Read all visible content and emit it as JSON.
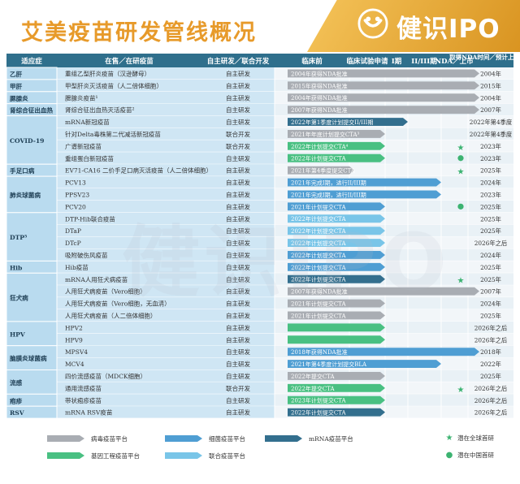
{
  "header": {
    "title": "艾美疫苗研发管线概况",
    "brand": "健识IPO"
  },
  "columns": [
    "适应症",
    "在售／在研疫苗",
    "自主研发／联合开发",
    "临床前",
    "临床试验申请",
    "I期",
    "II/III期",
    "NDA／上市",
    "取得NDA时间／预计上市时间"
  ],
  "chart_data": {
    "type": "table",
    "title": "艾美疫苗研发管线概况",
    "rows": [
      {
        "indication": "乙肝",
        "product": "重组乙型肝炎疫苗（汉逊酵母）",
        "dev": "自主研发",
        "bar": "NDA",
        "text": "2004年获得NDA批准",
        "color": "gray",
        "star": "",
        "time": "2004年"
      },
      {
        "indication": "甲肝",
        "product": "甲型肝炎灭活疫苗（人二倍体细胞）",
        "dev": "自主研发",
        "bar": "NDA",
        "text": "2015年获得NDA批准",
        "color": "gray",
        "star": "",
        "time": "2015年"
      },
      {
        "indication": "腮腺炎",
        "product": "腮腺炎疫苗¹",
        "dev": "自主研发",
        "bar": "NDA",
        "text": "2004年获得NDA批准",
        "color": "gray",
        "star": "",
        "time": "2004年"
      },
      {
        "indication": "肾综合征出血热",
        "product": "肾综合征出血热灭活疫苗²",
        "dev": "自主研发",
        "bar": "NDA",
        "text": "2007年获得NDA批准",
        "color": "gray",
        "star": "",
        "time": "2007年"
      },
      {
        "indication": "COVID-19",
        "product": "mRNA新冠疫苗",
        "dev": "自主研发",
        "bar": "I期",
        "text": "2022年第1季度计划提交II/III期",
        "color": "navy",
        "star": "",
        "time": "2022年第4季度"
      },
      {
        "indication": "",
        "product": "针对Delta毒株第二代减活新冠疫苗",
        "dev": "联合开发",
        "bar": "临床试验申请",
        "text": "2021年年底计划提交CTA³",
        "color": "gray",
        "star": "",
        "time": "2022年第4季度"
      },
      {
        "indication": "",
        "product": "广谱新冠疫苗",
        "dev": "联合开发",
        "bar": "临床试验申请",
        "text": "2022年计划提交CTA⁴",
        "color": "green",
        "star": "global",
        "time": "2023年"
      },
      {
        "indication": "",
        "product": "重组蛋白新冠疫苗",
        "dev": "自主研发",
        "bar": "临床试验申请",
        "text": "2022年计划提交CTA",
        "color": "green",
        "star": "china",
        "time": "2023年"
      },
      {
        "indication": "手足口病",
        "product": "EV71-CA16 二价手足口病灭活疫苗（人二倍体细胞）",
        "dev": "自主研发",
        "bar": "临床前",
        "text": "2021年第4季度提交CTA",
        "color": "gray",
        "star": "global",
        "time": "2025年"
      },
      {
        "indication": "肺炎球菌病",
        "product": "PCV13",
        "dev": "自主研发",
        "bar": "II/III期",
        "text": "2021年完成I期，进行II/III期",
        "color": "blue",
        "star": "",
        "time": "2024年"
      },
      {
        "indication": "",
        "product": "PPSV23",
        "dev": "自主研发",
        "bar": "II/III期",
        "text": "2021年完成I期，进行II/III期",
        "color": "blue",
        "star": "",
        "time": "2023年"
      },
      {
        "indication": "",
        "product": "PCV20",
        "dev": "自主研发",
        "bar": "临床试验申请",
        "text": "2021年计划提交CTA",
        "color": "blue",
        "star": "china",
        "time": "2025年"
      },
      {
        "indication": "DTP⁵",
        "product": "DTP-Hib联合疫苗",
        "dev": "自主研发",
        "bar": "临床试验申请",
        "text": "2022年计划提交CTA",
        "color": "lightblue",
        "star": "",
        "time": "2025年"
      },
      {
        "indication": "",
        "product": "DTaP",
        "dev": "自主研发",
        "bar": "临床试验申请",
        "text": "2022年计划提交CTA",
        "color": "lightblue",
        "star": "",
        "time": "2025年"
      },
      {
        "indication": "",
        "product": "DTcP",
        "dev": "自主研发",
        "bar": "临床试验申请",
        "text": "2022年计划提交CTA",
        "color": "lightblue",
        "star": "",
        "time": "2026年之后"
      },
      {
        "indication": "",
        "product": "吸附破伤风疫苗",
        "dev": "自主研发",
        "bar": "临床试验申请",
        "text": "2022年计划提交CTA",
        "color": "blue",
        "star": "",
        "time": "2024年"
      },
      {
        "indication": "Hib",
        "product": "Hib疫苗",
        "dev": "自主研发",
        "bar": "临床试验申请",
        "text": "2022年计划提交CTA",
        "color": "blue",
        "star": "",
        "time": "2025年"
      },
      {
        "indication": "狂犬病",
        "product": "mRNA人用狂犬病疫苗",
        "dev": "自主研发",
        "bar": "临床试验申请",
        "text": "2022年计划提交CTA",
        "color": "navy",
        "star": "global",
        "time": "2025年"
      },
      {
        "indication": "",
        "product": "人用狂犬病疫苗（Vero细胞）",
        "dev": "自主研发",
        "bar": "NDA",
        "text": "2007年获得NDA批准",
        "color": "gray",
        "star": "",
        "time": "2007年"
      },
      {
        "indication": "",
        "product": "人用狂犬病疫苗（Vero细胞，无血清）",
        "dev": "自主研发",
        "bar": "临床试验申请",
        "text": "2021年计划提交CTA",
        "color": "gray",
        "star": "",
        "time": "2024年"
      },
      {
        "indication": "",
        "product": "人用狂犬病疫苗（人二倍体细胞）",
        "dev": "自主研发",
        "bar": "临床试验申请",
        "text": "2021年计划提交CTA",
        "color": "gray",
        "star": "",
        "time": "2025年"
      },
      {
        "indication": "HPV",
        "product": "HPV2",
        "dev": "自主研发",
        "bar": "临床试验申请",
        "text": "",
        "color": "green",
        "star": "",
        "time": "2026年之后"
      },
      {
        "indication": "",
        "product": "HPV9",
        "dev": "自主研发",
        "bar": "临床试验申请",
        "text": "",
        "color": "green",
        "star": "",
        "time": "2026年之后"
      },
      {
        "indication": "脑膜炎球菌病",
        "product": "MPSV4",
        "dev": "自主研发",
        "bar": "NDA",
        "text": "2018年获得NDA批准",
        "color": "blue",
        "star": "",
        "time": "2018年"
      },
      {
        "indication": "",
        "product": "MCV4",
        "dev": "自主研发",
        "bar": "II/III期",
        "text": "2021年第4季度计划提交BLA",
        "color": "blue",
        "star": "",
        "time": "2022年"
      },
      {
        "indication": "流感",
        "product": "四价流感疫苗（MDCK细胞）",
        "dev": "自主研发",
        "bar": "临床试验申请",
        "text": "2022年提交CTA",
        "color": "gray",
        "star": "",
        "time": "2025年"
      },
      {
        "indication": "",
        "product": "通用流感疫苗",
        "dev": "联合开发",
        "bar": "临床试验申请",
        "text": "2022年提交CTA",
        "color": "green",
        "star": "global",
        "time": "2026年之后"
      },
      {
        "indication": "疱疹",
        "product": "带状疱疹疫苗",
        "dev": "自主研发",
        "bar": "临床试验申请",
        "text": "2023年计划提交CTA",
        "color": "green",
        "star": "",
        "time": "2026年之后"
      },
      {
        "indication": "RSV",
        "product": "mRNA RSV疫苗",
        "dev": "自主研发",
        "bar": "临床试验申请",
        "text": "2022年计划提交CTA",
        "color": "navy",
        "star": "",
        "time": "2026年之后"
      }
    ],
    "indication_groups": [
      {
        "label": "乙肝",
        "span": 1
      },
      {
        "label": "甲肝",
        "span": 1
      },
      {
        "label": "腮腺炎",
        "span": 1
      },
      {
        "label": "肾综合征出血热",
        "span": 1
      },
      {
        "label": "COVID-19",
        "span": 4
      },
      {
        "label": "手足口病",
        "span": 1
      },
      {
        "label": "肺炎球菌病",
        "span": 3
      },
      {
        "label": "DTP⁵",
        "span": 4
      },
      {
        "label": "Hib",
        "span": 1
      },
      {
        "label": "狂犬病",
        "span": 4
      },
      {
        "label": "HPV",
        "span": 2
      },
      {
        "label": "脑膜炎球菌病",
        "span": 2
      },
      {
        "label": "流感",
        "span": 2
      },
      {
        "label": "疱疹",
        "span": 1
      },
      {
        "label": "RSV",
        "span": 1
      }
    ],
    "legend": [
      {
        "label": "病毒疫苗平台",
        "color": "#a9adb3"
      },
      {
        "label": "细菌疫苗平台",
        "color": "#4f9ed3"
      },
      {
        "label": "mRNA疫苗平台",
        "color": "#336f8e"
      },
      {
        "label": "基因工程疫苗平台",
        "color": "#49c082"
      },
      {
        "label": "联合疫苗平台",
        "color": "#79c5e8"
      },
      {
        "label": "潜在全球首研",
        "marker": "★",
        "color": "#3cb371"
      },
      {
        "label": "潜在中国首研",
        "marker": "●",
        "color": "#3cb371"
      }
    ]
  }
}
